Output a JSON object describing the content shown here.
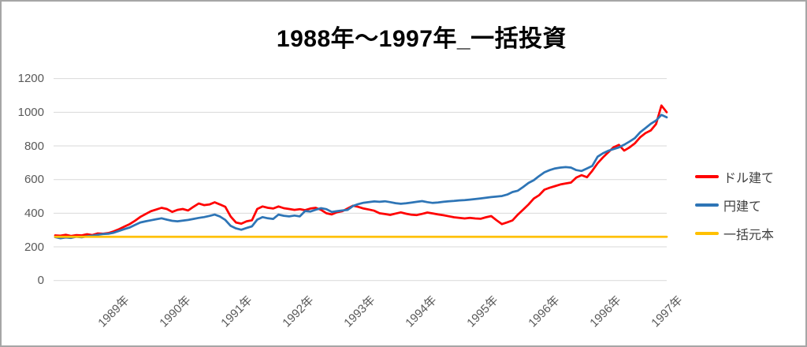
{
  "title": "1988年〜1997年_一括投資",
  "colors": {
    "dollar": "#FF0000",
    "yen": "#2E75B6",
    "principal": "#FFC000",
    "gridline": "#D9D9D9",
    "axis_text": "#595959",
    "legend_text": "#404040",
    "frame_border": "#A6A6A6"
  },
  "chart_data": {
    "type": "line",
    "title": "1988年〜1997年_一括投資",
    "grid": "horizontal",
    "legend_position": "right",
    "ylim": [
      0,
      1200
    ],
    "y_ticks": [
      0,
      200,
      400,
      600,
      800,
      1000,
      1200
    ],
    "x_tick_labels": [
      "1989年",
      "1990年",
      "1991年",
      "1992年",
      "1993年",
      "1994年",
      "1995年",
      "1996年",
      "1996年",
      "1997年"
    ],
    "series": [
      {
        "name": "ドル建て",
        "color": "#FF0000",
        "values": [
          268,
          266,
          272,
          265,
          270,
          268,
          275,
          270,
          280,
          278,
          282,
          292,
          305,
          320,
          335,
          355,
          378,
          395,
          412,
          422,
          432,
          425,
          408,
          420,
          425,
          416,
          438,
          458,
          448,
          452,
          465,
          452,
          438,
          380,
          345,
          338,
          352,
          358,
          425,
          440,
          432,
          428,
          440,
          430,
          425,
          420,
          424,
          418,
          428,
          432,
          420,
          400,
          393,
          406,
          412,
          428,
          445,
          438,
          428,
          422,
          415,
          400,
          395,
          390,
          398,
          405,
          397,
          391,
          389,
          396,
          404,
          399,
          393,
          388,
          382,
          376,
          372,
          369,
          372,
          369,
          367,
          376,
          383,
          358,
          335,
          346,
          357,
          392,
          421,
          452,
          487,
          507,
          540,
          551,
          561,
          571,
          577,
          582,
          612,
          626,
          614,
          652,
          697,
          731,
          762,
          792,
          806,
          772,
          791,
          815,
          851,
          876,
          892,
          930,
          1040,
          1000
        ]
      },
      {
        "name": "円建て",
        "color": "#2E75B6",
        "values": [
          258,
          251,
          256,
          253,
          260,
          257,
          263,
          266,
          272,
          276,
          278,
          284,
          295,
          305,
          315,
          330,
          345,
          352,
          358,
          364,
          370,
          362,
          355,
          352,
          356,
          360,
          366,
          372,
          377,
          384,
          392,
          380,
          360,
          325,
          310,
          302,
          312,
          322,
          362,
          377,
          370,
          366,
          392,
          385,
          381,
          386,
          381,
          413,
          410,
          421,
          430,
          424,
          408,
          412,
          416,
          420,
          443,
          454,
          462,
          466,
          470,
          468,
          471,
          466,
          460,
          456,
          459,
          463,
          468,
          472,
          466,
          461,
          464,
          468,
          471,
          473,
          476,
          478,
          481,
          484,
          488,
          492,
          496,
          499,
          502,
          511,
          526,
          534,
          556,
          580,
          596,
          621,
          643,
          656,
          666,
          671,
          674,
          671,
          656,
          651,
          666,
          681,
          736,
          756,
          771,
          781,
          791,
          807,
          826,
          846,
          881,
          906,
          932,
          951,
          985,
          970
        ]
      },
      {
        "name": "一括元本",
        "color": "#FFC000",
        "constant": 260
      }
    ]
  }
}
